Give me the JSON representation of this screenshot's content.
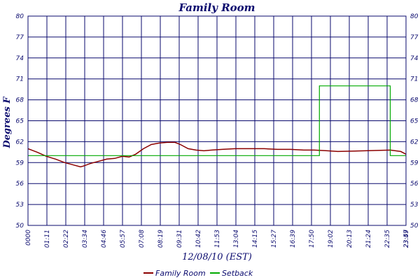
{
  "chart_data": {
    "type": "line",
    "title": "Family Room",
    "xlabel": "12/08/10 (EST)",
    "ylabel": "Degrees F",
    "ylim": [
      50,
      80
    ],
    "yticks": [
      "50",
      "53",
      "56",
      "59",
      "62",
      "65",
      "68",
      "71",
      "74",
      "77",
      "80"
    ],
    "xlim_minutes": [
      0,
      1440
    ],
    "xticks": [
      "0000",
      "01:11",
      "02:22",
      "03:34",
      "04:46",
      "05:57",
      "07:08",
      "08:19",
      "09:31",
      "10:42",
      "11:53",
      "13:04",
      "14:15",
      "15:27",
      "16:39",
      "17:50",
      "19:02",
      "20:13",
      "21:24",
      "22:35",
      "23:47",
      "23:59"
    ],
    "grid": true,
    "legend_position": "bottom",
    "series": [
      {
        "name": "Family Room",
        "color": "#8b0000",
        "points": [
          [
            0,
            61.0
          ],
          [
            35,
            60.5
          ],
          [
            70,
            59.9
          ],
          [
            105,
            59.5
          ],
          [
            140,
            59.0
          ],
          [
            170,
            58.7
          ],
          [
            200,
            58.4
          ],
          [
            210,
            58.5
          ],
          [
            240,
            58.9
          ],
          [
            270,
            59.2
          ],
          [
            300,
            59.5
          ],
          [
            330,
            59.6
          ],
          [
            360,
            59.9
          ],
          [
            385,
            59.8
          ],
          [
            410,
            60.2
          ],
          [
            440,
            61.0
          ],
          [
            470,
            61.6
          ],
          [
            500,
            61.8
          ],
          [
            530,
            61.9
          ],
          [
            560,
            61.9
          ],
          [
            580,
            61.6
          ],
          [
            610,
            61.0
          ],
          [
            640,
            60.8
          ],
          [
            670,
            60.7
          ],
          [
            700,
            60.8
          ],
          [
            740,
            60.9
          ],
          [
            790,
            61.0
          ],
          [
            850,
            61.0
          ],
          [
            900,
            61.0
          ],
          [
            950,
            60.9
          ],
          [
            1000,
            60.9
          ],
          [
            1050,
            60.8
          ],
          [
            1090,
            60.8
          ],
          [
            1140,
            60.7
          ],
          [
            1180,
            60.6
          ],
          [
            1380,
            60.8
          ],
          [
            1400,
            60.7
          ],
          [
            1420,
            60.6
          ],
          [
            1440,
            60.2
          ]
        ]
      },
      {
        "name": "Setback",
        "color": "#00aa00",
        "points": [
          [
            0,
            60.0
          ],
          [
            1110,
            60.0
          ],
          [
            1110,
            70.0
          ],
          [
            1380,
            70.0
          ],
          [
            1380,
            60.0
          ],
          [
            1440,
            60.0
          ]
        ]
      }
    ]
  }
}
